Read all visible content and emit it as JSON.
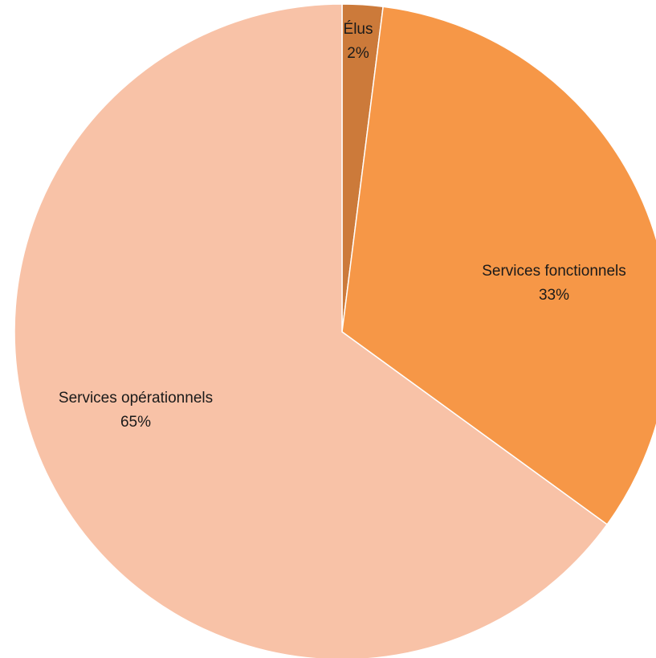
{
  "chart_data": {
    "type": "pie",
    "title": "",
    "start_angle_deg": 0,
    "direction": "clockwise",
    "slices": [
      {
        "label": "Élus",
        "value": 2,
        "value_label": "2%",
        "color": "#CC7A3A"
      },
      {
        "label": "Services fonctionnels",
        "value": 33,
        "value_label": "33%",
        "color": "#F69747"
      },
      {
        "label": "Services opérationnels",
        "value": 65,
        "value_label": "65%",
        "color": "#F8C2A7"
      }
    ]
  }
}
